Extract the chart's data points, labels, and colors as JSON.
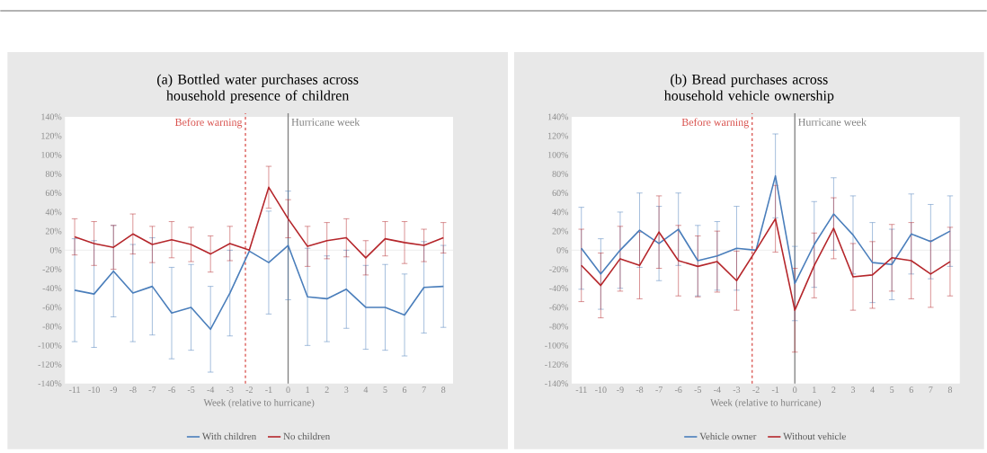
{
  "chart_data": [
    {
      "type": "line",
      "title": "(a) Bottled water purchases across household presence of children",
      "xlabel": "Week (relative to hurricane)",
      "x": [
        -11,
        -10,
        -9,
        -8,
        -7,
        -6,
        -5,
        -4,
        -3,
        -2,
        -1,
        0,
        1,
        2,
        3,
        4,
        5,
        6,
        7,
        8
      ],
      "xlim": [
        -11.5,
        8.5
      ],
      "xticks": [
        -11,
        -10,
        -9,
        -8,
        -7,
        -6,
        -5,
        -4,
        -3,
        -2,
        -1,
        0,
        1,
        2,
        3,
        4,
        5,
        6,
        7,
        8
      ],
      "ylim": [
        -140,
        140
      ],
      "yticks": [
        {
          "value": -140,
          "label": "-140%"
        },
        {
          "value": -120,
          "label": "-120%"
        },
        {
          "value": -100,
          "label": "-100%"
        },
        {
          "value": -80,
          "label": "-80%"
        },
        {
          "value": -60,
          "label": "-60%"
        },
        {
          "value": -40,
          "label": "-40%"
        },
        {
          "value": -20,
          "label": "-20%"
        },
        {
          "value": 0,
          "label": "0%"
        },
        {
          "value": 20,
          "label": "20%"
        },
        {
          "value": 40,
          "label": "40%"
        },
        {
          "value": 60,
          "label": "60%"
        },
        {
          "value": 80,
          "label": "80%"
        },
        {
          "value": 100,
          "label": "100%"
        },
        {
          "value": 120,
          "label": "120%"
        },
        {
          "value": 140,
          "label": "140%"
        }
      ],
      "legend": "bottom",
      "series": [
        {
          "name": "With children",
          "color": "#4a7ebb",
          "values": [
            -42,
            -46,
            -22,
            -45,
            -38,
            -66,
            -60,
            -83,
            -45,
            -1,
            -13,
            5,
            -49,
            -51,
            -41,
            -60,
            -60,
            -68,
            -39,
            -38
          ],
          "errors": [
            54,
            56,
            48,
            51,
            51,
            48,
            45,
            45,
            45,
            null,
            54,
            57,
            51,
            45,
            41,
            44,
            45,
            43,
            48,
            43
          ]
        },
        {
          "name": "No children",
          "color": "#b5262b",
          "values": [
            14,
            7,
            3,
            17,
            6,
            11,
            6,
            -4,
            7,
            0,
            66,
            33,
            4,
            10,
            13,
            -8,
            12,
            8,
            5,
            13
          ],
          "errors": [
            19,
            23,
            23,
            21,
            19,
            19,
            18,
            19,
            18,
            null,
            22,
            20,
            21,
            19,
            20,
            18,
            18,
            22,
            17,
            16
          ]
        }
      ],
      "ref_lines": [
        {
          "axis": "x",
          "value": -2.2,
          "label": "Before warning",
          "color": "#d9534f",
          "line_style": "dashed"
        },
        {
          "axis": "x",
          "value": 0,
          "label": "Hurricane week",
          "color": "#7f7f7f",
          "line_style": "solid"
        }
      ]
    },
    {
      "type": "line",
      "title": "(b) Bread purchases across household vehicle ownership",
      "xlabel": "Week (relative to hurricane)",
      "x": [
        -11,
        -10,
        -9,
        -8,
        -7,
        -6,
        -5,
        -4,
        -3,
        -2,
        -1,
        0,
        1,
        2,
        3,
        4,
        5,
        6,
        7,
        8
      ],
      "xlim": [
        -11.5,
        8.5
      ],
      "xticks": [
        -11,
        -10,
        -9,
        -8,
        -7,
        -6,
        -5,
        -4,
        -3,
        -2,
        -1,
        0,
        1,
        2,
        3,
        4,
        5,
        6,
        7,
        8
      ],
      "ylim": [
        -140,
        140
      ],
      "yticks": [
        {
          "value": -140,
          "label": "-140%"
        },
        {
          "value": -120,
          "label": "-120%"
        },
        {
          "value": -100,
          "label": "-100%"
        },
        {
          "value": -80,
          "label": "-80%"
        },
        {
          "value": -60,
          "label": "-60%"
        },
        {
          "value": -40,
          "label": "-40%"
        },
        {
          "value": -20,
          "label": "-20%"
        },
        {
          "value": 0,
          "label": "0%"
        },
        {
          "value": 20,
          "label": "20%"
        },
        {
          "value": 40,
          "label": "40%"
        },
        {
          "value": 60,
          "label": "60%"
        },
        {
          "value": 80,
          "label": "80%"
        },
        {
          "value": 100,
          "label": "100%"
        },
        {
          "value": 120,
          "label": "120%"
        },
        {
          "value": 140,
          "label": "140%"
        }
      ],
      "legend": "bottom",
      "series": [
        {
          "name": "Vehicle owner",
          "color": "#4a7ebb",
          "values": [
            2,
            -25,
            0,
            21,
            7,
            22,
            -11,
            -6,
            2,
            0,
            78,
            -35,
            6,
            38,
            16,
            -13,
            -15,
            17,
            9,
            20
          ],
          "errors": [
            43,
            37,
            40,
            39,
            39,
            38,
            37,
            36,
            44,
            null,
            44,
            39,
            45,
            38,
            41,
            42,
            37,
            42,
            39,
            37
          ]
        },
        {
          "name": "Without vehicle",
          "color": "#b5262b",
          "values": [
            -16,
            -37,
            -9,
            -16,
            19,
            -11,
            -17,
            -12,
            -32,
            0,
            33,
            -63,
            -16,
            23,
            -28,
            -26,
            -8,
            -11,
            -25,
            -12
          ],
          "errors": [
            38,
            34,
            34,
            35,
            38,
            37,
            32,
            32,
            31,
            null,
            35,
            44,
            34,
            32,
            35,
            35,
            35,
            40,
            35,
            36
          ]
        }
      ],
      "ref_lines": [
        {
          "axis": "x",
          "value": -2.2,
          "label": "Before warning",
          "color": "#d9534f",
          "line_style": "dashed"
        },
        {
          "axis": "x",
          "value": 0,
          "label": "Hurricane week",
          "color": "#7f7f7f",
          "line_style": "solid"
        }
      ]
    }
  ]
}
